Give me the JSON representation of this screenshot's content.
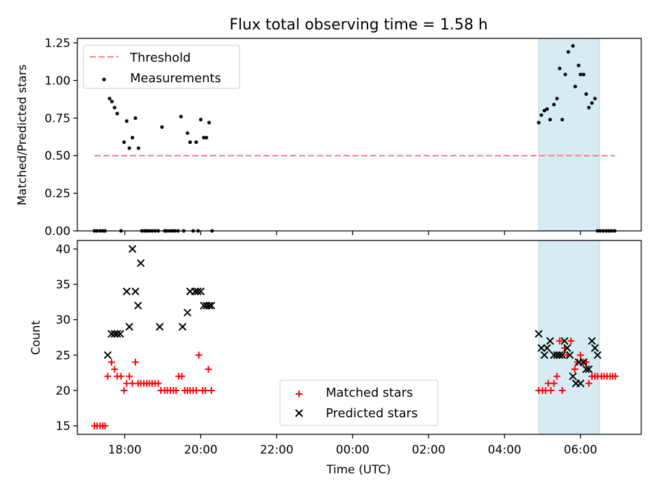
{
  "title": "Flux total observing time = 1.58 h",
  "colors": {
    "threshold": "#ff7f7f",
    "measurement": "#000000",
    "matched": "#ff0000",
    "predicted": "#000000",
    "highlight": "#add8e6"
  },
  "chart_data": [
    {
      "type": "scatter",
      "panel": "top",
      "ylabel": "Matched/Predicted stars",
      "ylim": [
        0,
        1.28
      ],
      "yticks": [
        0.0,
        0.25,
        0.5,
        0.75,
        1.0,
        1.25
      ],
      "ytick_labels": [
        "0.00",
        "0.25",
        "0.50",
        "0.75",
        "1.00",
        "1.25"
      ],
      "xlim_hours": [
        16.75,
        31.6
      ],
      "highlight_span_hours": [
        28.9,
        30.5
      ],
      "legend": {
        "position": "top-left",
        "entries": [
          "Threshold",
          "Measurements"
        ]
      },
      "threshold": {
        "name": "Threshold",
        "y": 0.5,
        "x_range_hours": [
          17.2,
          30.9
        ]
      },
      "series": [
        {
          "name": "Measurements",
          "x_hours": [
            17.2,
            17.27,
            17.35,
            17.42,
            17.48,
            17.6,
            17.66,
            17.73,
            17.8,
            17.9,
            17.98,
            18.05,
            18.12,
            18.2,
            18.28,
            18.36,
            18.45,
            18.52,
            18.58,
            18.65,
            18.72,
            18.8,
            18.88,
            18.98,
            19.05,
            19.1,
            19.18,
            19.25,
            19.32,
            19.4,
            19.48,
            19.55,
            19.65,
            19.72,
            19.8,
            19.88,
            19.93,
            20.0,
            20.08,
            20.15,
            20.22,
            20.3,
            28.9,
            28.97,
            29.05,
            29.12,
            29.2,
            29.3,
            29.38,
            29.45,
            29.52,
            29.6,
            29.68,
            29.8,
            29.86,
            29.95,
            30.0,
            30.08,
            30.15,
            30.22,
            30.3,
            30.38,
            30.45,
            30.52,
            30.6,
            30.68,
            30.75,
            30.82,
            30.9
          ],
          "y": [
            0.0,
            0.0,
            0.0,
            0.0,
            0.0,
            0.88,
            0.86,
            0.82,
            0.78,
            0.0,
            0.59,
            0.73,
            0.55,
            0.62,
            0.75,
            0.55,
            0.0,
            0.0,
            0.0,
            0.0,
            0.0,
            0.0,
            0.0,
            0.69,
            0.0,
            0.0,
            0.0,
            0.0,
            0.0,
            0.0,
            0.76,
            0.0,
            0.65,
            0.59,
            0.0,
            0.59,
            0.0,
            0.74,
            0.62,
            0.62,
            0.72,
            0.0,
            0.72,
            0.77,
            0.8,
            0.81,
            0.74,
            0.84,
            0.88,
            1.08,
            0.74,
            1.04,
            1.19,
            1.23,
            0.96,
            1.1,
            1.04,
            1.04,
            0.91,
            0.82,
            0.85,
            0.88,
            0.0,
            0.0,
            0.0,
            0.0,
            0.0,
            0.0,
            0.0
          ]
        }
      ]
    },
    {
      "type": "scatter",
      "panel": "bottom",
      "xlabel": "Time (UTC)",
      "ylabel": "Count",
      "ylim": [
        13.8,
        41.2
      ],
      "yticks": [
        15,
        20,
        25,
        30,
        35,
        40
      ],
      "xlim_hours": [
        16.75,
        31.6
      ],
      "xticks_hours": [
        18,
        20,
        22,
        24,
        26,
        28,
        30
      ],
      "xtick_labels": [
        "18:00",
        "20:00",
        "22:00",
        "00:00",
        "02:00",
        "04:00",
        "06:00"
      ],
      "highlight_span_hours": [
        28.9,
        30.5
      ],
      "legend": {
        "position": "lower-center",
        "entries": [
          "Matched stars",
          "Predicted stars"
        ]
      },
      "series": [
        {
          "name": "Matched stars",
          "marker": "plus",
          "x_hours": [
            17.2,
            17.27,
            17.35,
            17.42,
            17.48,
            17.55,
            17.65,
            17.73,
            17.8,
            17.9,
            17.98,
            18.05,
            18.12,
            18.2,
            18.28,
            18.35,
            18.42,
            18.5,
            18.58,
            18.65,
            18.72,
            18.8,
            18.88,
            18.95,
            19.05,
            19.12,
            19.2,
            19.28,
            19.35,
            19.42,
            19.5,
            19.58,
            19.65,
            19.72,
            19.8,
            19.88,
            19.95,
            20.05,
            20.12,
            20.2,
            20.28,
            28.9,
            29.0,
            29.08,
            29.15,
            29.22,
            29.3,
            29.38,
            29.45,
            29.52,
            29.58,
            29.65,
            29.75,
            29.85,
            29.92,
            30.0,
            30.08,
            30.15,
            30.22,
            30.3,
            30.38,
            30.45,
            30.55,
            30.62,
            30.7,
            30.78,
            30.85,
            30.92
          ],
          "y": [
            15,
            15,
            15,
            15,
            15,
            22,
            24,
            23,
            22,
            22,
            20,
            21,
            22,
            21,
            24,
            21,
            21,
            21,
            21,
            21,
            21,
            21,
            21,
            20,
            20,
            20,
            20,
            20,
            20,
            22,
            22,
            20,
            20,
            20,
            20,
            20,
            25,
            20,
            20,
            23,
            20,
            20,
            20,
            20,
            21,
            20,
            21,
            22,
            27,
            20,
            26,
            25,
            27,
            23,
            24,
            25,
            24,
            24,
            21,
            22,
            22,
            22,
            22,
            22,
            22,
            22,
            22,
            22
          ]
        },
        {
          "name": "Predicted stars",
          "marker": "x",
          "x_hours": [
            17.55,
            17.65,
            17.73,
            17.8,
            17.88,
            18.05,
            18.12,
            18.2,
            18.28,
            18.35,
            18.42,
            18.92,
            19.52,
            19.65,
            19.72,
            19.85,
            19.92,
            20.0,
            20.08,
            20.15,
            20.22,
            20.28,
            28.9,
            28.97,
            29.05,
            29.12,
            29.2,
            29.3,
            29.38,
            29.45,
            29.52,
            29.58,
            29.65,
            29.72,
            29.8,
            29.88,
            29.95,
            30.0,
            30.08,
            30.15,
            30.22,
            30.3,
            30.38,
            30.45
          ],
          "y": [
            25,
            28,
            28,
            28,
            28,
            34,
            29,
            40,
            34,
            32,
            38,
            29,
            29,
            31,
            34,
            34,
            34,
            34,
            32,
            32,
            32,
            32,
            28,
            26,
            25,
            26,
            27,
            25,
            25,
            25,
            25,
            27,
            26,
            25,
            22,
            21,
            24,
            21,
            24,
            23,
            23,
            27,
            26,
            25
          ]
        }
      ]
    }
  ]
}
